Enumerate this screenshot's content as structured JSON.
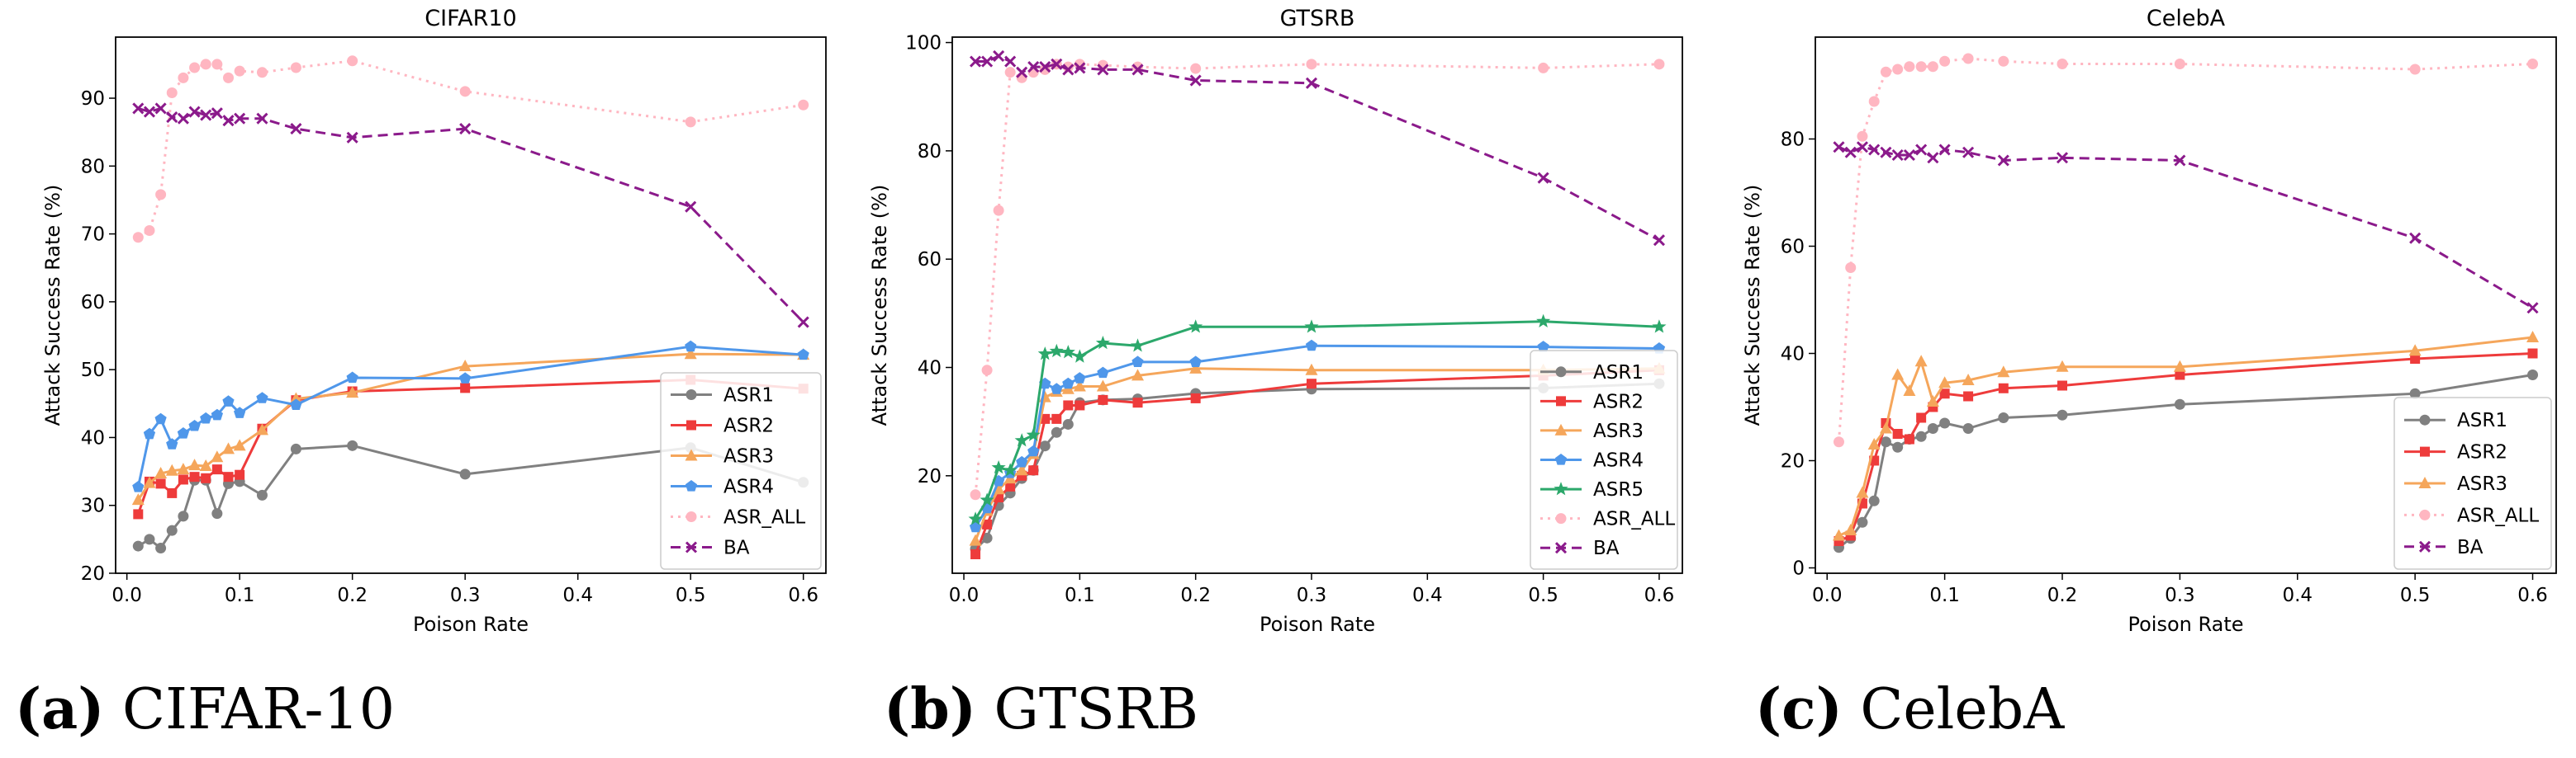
{
  "chart_data": [
    {
      "type": "line",
      "title": "CIFAR10",
      "xlabel": "Poison Rate",
      "ylabel": "Attack Success Rate (%)",
      "xlim": [
        -0.01,
        0.62
      ],
      "ylim": [
        20,
        99
      ],
      "xticks": [
        0.0,
        0.1,
        0.2,
        0.3,
        0.4,
        0.5,
        0.6
      ],
      "xtick_labels": [
        "0.0",
        "0.1",
        "0.2",
        "0.3",
        "0.4",
        "0.5",
        "0.6"
      ],
      "yticks": [
        20,
        30,
        40,
        50,
        60,
        70,
        80,
        90
      ],
      "ytick_labels": [
        "20",
        "30",
        "40",
        "50",
        "60",
        "70",
        "80",
        "90"
      ],
      "grid": false,
      "legend_position": "lower-right",
      "series": [
        {
          "name": "ASR1",
          "color": "#808080",
          "style": "solid",
          "marker": "circle",
          "x": [
            0.01,
            0.02,
            0.03,
            0.04,
            0.05,
            0.06,
            0.07,
            0.08,
            0.09,
            0.1,
            0.12,
            0.15,
            0.2,
            0.3,
            0.5,
            0.6
          ],
          "y": [
            24.0,
            25.0,
            23.7,
            26.3,
            28.4,
            33.7,
            33.7,
            28.8,
            33.2,
            33.5,
            31.5,
            38.3,
            38.8,
            34.6,
            38.5,
            33.4
          ]
        },
        {
          "name": "ASR2",
          "color": "#ee3b3b",
          "style": "solid",
          "marker": "square",
          "x": [
            0.01,
            0.02,
            0.03,
            0.04,
            0.05,
            0.06,
            0.07,
            0.08,
            0.09,
            0.1,
            0.12,
            0.15,
            0.2,
            0.3,
            0.5,
            0.6
          ],
          "y": [
            28.7,
            33.5,
            33.2,
            31.8,
            33.8,
            34.2,
            34.0,
            35.3,
            34.2,
            34.5,
            41.3,
            45.5,
            46.8,
            47.3,
            48.5,
            47.2
          ]
        },
        {
          "name": "ASR3",
          "color": "#f5a65b",
          "style": "solid",
          "marker": "triangle",
          "x": [
            0.01,
            0.02,
            0.03,
            0.04,
            0.05,
            0.06,
            0.07,
            0.08,
            0.09,
            0.1,
            0.12,
            0.15,
            0.2,
            0.3,
            0.5,
            0.6
          ],
          "y": [
            30.8,
            33.3,
            34.7,
            35.1,
            35.3,
            35.9,
            35.8,
            37.1,
            38.3,
            38.8,
            41.1,
            45.7,
            46.6,
            50.5,
            52.3,
            52.2
          ]
        },
        {
          "name": "ASR4",
          "color": "#4f97ea",
          "style": "solid",
          "marker": "pentagon",
          "x": [
            0.01,
            0.02,
            0.03,
            0.04,
            0.05,
            0.06,
            0.07,
            0.08,
            0.09,
            0.1,
            0.12,
            0.15,
            0.2,
            0.3,
            0.5,
            0.6
          ],
          "y": [
            32.7,
            40.5,
            42.7,
            39.0,
            40.6,
            41.7,
            42.8,
            43.3,
            45.3,
            43.6,
            45.8,
            44.8,
            48.8,
            48.7,
            53.4,
            52.2
          ]
        },
        {
          "name": "ASR_ALL",
          "color": "#ffb6c1",
          "style": "dotted",
          "marker": "circle",
          "x": [
            0.01,
            0.02,
            0.03,
            0.04,
            0.05,
            0.06,
            0.07,
            0.08,
            0.09,
            0.1,
            0.12,
            0.15,
            0.2,
            0.3,
            0.5,
            0.6
          ],
          "y": [
            69.5,
            70.5,
            75.8,
            90.8,
            93.0,
            94.5,
            95.0,
            95.0,
            93.0,
            94.0,
            93.8,
            94.5,
            95.5,
            91.0,
            86.5,
            89.0
          ]
        },
        {
          "name": "BA",
          "color": "#8b1a8b",
          "style": "dashed",
          "marker": "x",
          "x": [
            0.01,
            0.02,
            0.03,
            0.04,
            0.05,
            0.06,
            0.07,
            0.08,
            0.09,
            0.1,
            0.12,
            0.15,
            0.2,
            0.3,
            0.5,
            0.6
          ],
          "y": [
            88.5,
            88.0,
            88.5,
            87.2,
            87.0,
            88.0,
            87.5,
            87.8,
            86.7,
            87.0,
            87.0,
            85.5,
            84.2,
            85.5,
            74.0,
            57.0
          ]
        }
      ]
    },
    {
      "type": "line",
      "title": "GTSRB",
      "xlabel": "Poison Rate",
      "ylabel": "Attack Success Rate (%)",
      "xlim": [
        -0.01,
        0.62
      ],
      "ylim": [
        2,
        101
      ],
      "xticks": [
        0.0,
        0.1,
        0.2,
        0.3,
        0.4,
        0.5,
        0.6
      ],
      "xtick_labels": [
        "0.0",
        "0.1",
        "0.2",
        "0.3",
        "0.4",
        "0.5",
        "0.6"
      ],
      "yticks": [
        20,
        40,
        60,
        80,
        100
      ],
      "ytick_labels": [
        "20",
        "40",
        "60",
        "80",
        "100"
      ],
      "grid": false,
      "legend_position": "lower-right",
      "series": [
        {
          "name": "ASR1",
          "color": "#808080",
          "style": "solid",
          "marker": "circle",
          "x": [
            0.01,
            0.02,
            0.03,
            0.04,
            0.05,
            0.06,
            0.07,
            0.08,
            0.09,
            0.1,
            0.12,
            0.15,
            0.2,
            0.3,
            0.5,
            0.6
          ],
          "y": [
            6.5,
            8.5,
            14.5,
            16.8,
            19.5,
            21.0,
            25.5,
            28.0,
            29.5,
            33.5,
            34.0,
            34.2,
            35.2,
            36.0,
            36.2,
            37.0
          ]
        },
        {
          "name": "ASR2",
          "color": "#ee3b3b",
          "style": "solid",
          "marker": "square",
          "x": [
            0.01,
            0.02,
            0.03,
            0.04,
            0.05,
            0.06,
            0.07,
            0.08,
            0.09,
            0.1,
            0.12,
            0.15,
            0.2,
            0.3,
            0.5,
            0.6
          ],
          "y": [
            5.5,
            11.0,
            16.0,
            18.0,
            20.0,
            21.0,
            30.5,
            30.5,
            33.0,
            33.0,
            34.0,
            33.5,
            34.3,
            37.0,
            38.5,
            39.5
          ]
        },
        {
          "name": "ASR3",
          "color": "#f5a65b",
          "style": "solid",
          "marker": "triangle",
          "x": [
            0.01,
            0.02,
            0.03,
            0.04,
            0.05,
            0.06,
            0.07,
            0.08,
            0.09,
            0.1,
            0.12,
            0.15,
            0.2,
            0.3,
            0.5,
            0.6
          ],
          "y": [
            8.0,
            13.5,
            17.5,
            19.5,
            21.0,
            24.0,
            34.5,
            35.5,
            36.0,
            36.5,
            36.5,
            38.5,
            39.8,
            39.5,
            39.5,
            39.8
          ]
        },
        {
          "name": "ASR4",
          "color": "#4f97ea",
          "style": "solid",
          "marker": "pentagon",
          "x": [
            0.01,
            0.02,
            0.03,
            0.04,
            0.05,
            0.06,
            0.07,
            0.08,
            0.09,
            0.1,
            0.12,
            0.15,
            0.2,
            0.3,
            0.5,
            0.6
          ],
          "y": [
            10.5,
            14.0,
            19.0,
            20.5,
            22.5,
            24.5,
            37.0,
            36.0,
            37.0,
            38.0,
            39.0,
            41.0,
            41.0,
            44.0,
            43.8,
            43.5
          ]
        },
        {
          "name": "ASR5",
          "color": "#2ca86b",
          "style": "solid",
          "marker": "star",
          "x": [
            0.01,
            0.02,
            0.03,
            0.04,
            0.05,
            0.06,
            0.07,
            0.08,
            0.09,
            0.1,
            0.12,
            0.15,
            0.2,
            0.3,
            0.5,
            0.6
          ],
          "y": [
            12.0,
            15.5,
            21.5,
            21.0,
            26.5,
            27.5,
            42.5,
            43.0,
            42.8,
            42.0,
            44.5,
            44.0,
            47.5,
            47.5,
            48.5,
            47.5
          ]
        },
        {
          "name": "ASR_ALL",
          "color": "#ffb6c1",
          "style": "dotted",
          "marker": "circle",
          "x": [
            0.01,
            0.02,
            0.03,
            0.04,
            0.05,
            0.06,
            0.07,
            0.08,
            0.09,
            0.1,
            0.12,
            0.15,
            0.2,
            0.3,
            0.5,
            0.6
          ],
          "y": [
            16.5,
            39.5,
            69.0,
            94.5,
            93.5,
            94.5,
            95.0,
            96.0,
            95.5,
            96.0,
            95.8,
            95.5,
            95.2,
            96.0,
            95.3,
            96.0
          ]
        },
        {
          "name": "BA",
          "color": "#8b1a8b",
          "style": "dashed",
          "marker": "x",
          "x": [
            0.01,
            0.02,
            0.03,
            0.04,
            0.05,
            0.06,
            0.07,
            0.08,
            0.09,
            0.1,
            0.12,
            0.15,
            0.2,
            0.3,
            0.5,
            0.6
          ],
          "y": [
            96.5,
            96.5,
            97.5,
            96.5,
            94.5,
            95.5,
            95.5,
            96.0,
            95.0,
            95.3,
            95.0,
            95.0,
            93.0,
            92.5,
            75.0,
            63.5
          ]
        }
      ]
    },
    {
      "type": "line",
      "title": "CelebA",
      "xlabel": "Poison Rate",
      "ylabel": "Attack Success Rate (%)",
      "xlim": [
        -0.01,
        0.62
      ],
      "ylim": [
        -1,
        99
      ],
      "xticks": [
        0.0,
        0.1,
        0.2,
        0.3,
        0.4,
        0.5,
        0.6
      ],
      "xtick_labels": [
        "0.0",
        "0.1",
        "0.2",
        "0.3",
        "0.4",
        "0.5",
        "0.6"
      ],
      "yticks": [
        0,
        20,
        40,
        60,
        80
      ],
      "ytick_labels": [
        "0",
        "20",
        "40",
        "60",
        "80"
      ],
      "grid": false,
      "legend_position": "lower-right",
      "series": [
        {
          "name": "ASR1",
          "color": "#808080",
          "style": "solid",
          "marker": "circle",
          "x": [
            0.01,
            0.02,
            0.03,
            0.04,
            0.05,
            0.06,
            0.07,
            0.08,
            0.09,
            0.1,
            0.12,
            0.15,
            0.2,
            0.3,
            0.5,
            0.6
          ],
          "y": [
            3.8,
            5.5,
            8.5,
            12.5,
            23.5,
            22.5,
            24.0,
            24.5,
            26.0,
            27.0,
            26.0,
            28.0,
            28.5,
            30.5,
            32.5,
            36.0
          ]
        },
        {
          "name": "ASR2",
          "color": "#ee3b3b",
          "style": "solid",
          "marker": "square",
          "x": [
            0.01,
            0.02,
            0.03,
            0.04,
            0.05,
            0.06,
            0.07,
            0.08,
            0.09,
            0.1,
            0.12,
            0.15,
            0.2,
            0.3,
            0.5,
            0.6
          ],
          "y": [
            5.0,
            6.0,
            12.0,
            20.0,
            27.0,
            25.0,
            24.0,
            28.0,
            30.0,
            32.5,
            32.0,
            33.5,
            34.0,
            36.0,
            39.0,
            40.0
          ]
        },
        {
          "name": "ASR3",
          "color": "#f5a65b",
          "style": "solid",
          "marker": "triangle",
          "x": [
            0.01,
            0.02,
            0.03,
            0.04,
            0.05,
            0.06,
            0.07,
            0.08,
            0.09,
            0.1,
            0.12,
            0.15,
            0.2,
            0.3,
            0.5,
            0.6
          ],
          "y": [
            6.0,
            7.0,
            14.0,
            23.0,
            26.0,
            36.0,
            33.0,
            38.5,
            31.0,
            34.5,
            35.0,
            36.5,
            37.5,
            37.5,
            40.5,
            43.0
          ]
        },
        {
          "name": "ASR_ALL",
          "color": "#ffb6c1",
          "style": "dotted",
          "marker": "circle",
          "x": [
            0.01,
            0.02,
            0.03,
            0.04,
            0.05,
            0.06,
            0.07,
            0.08,
            0.09,
            0.1,
            0.12,
            0.15,
            0.2,
            0.3,
            0.5,
            0.6
          ],
          "y": [
            23.5,
            56.0,
            80.5,
            87.0,
            92.5,
            93.0,
            93.5,
            93.5,
            93.5,
            94.5,
            95.0,
            94.5,
            94.0,
            94.0,
            93.0,
            94.0
          ]
        },
        {
          "name": "BA",
          "color": "#8b1a8b",
          "style": "dashed",
          "marker": "x",
          "x": [
            0.01,
            0.02,
            0.03,
            0.04,
            0.05,
            0.06,
            0.07,
            0.08,
            0.09,
            0.1,
            0.12,
            0.15,
            0.2,
            0.3,
            0.5,
            0.6
          ],
          "y": [
            78.5,
            77.5,
            78.5,
            78.0,
            77.5,
            77.0,
            77.0,
            78.0,
            76.5,
            78.0,
            77.5,
            76.0,
            76.5,
            76.0,
            61.5,
            48.5
          ]
        }
      ]
    }
  ],
  "captions": [
    {
      "label": "(a)",
      "text": "CIFAR-10"
    },
    {
      "label": "(b)",
      "text": "GTSRB"
    },
    {
      "label": "(c)",
      "text": "CelebA"
    }
  ]
}
